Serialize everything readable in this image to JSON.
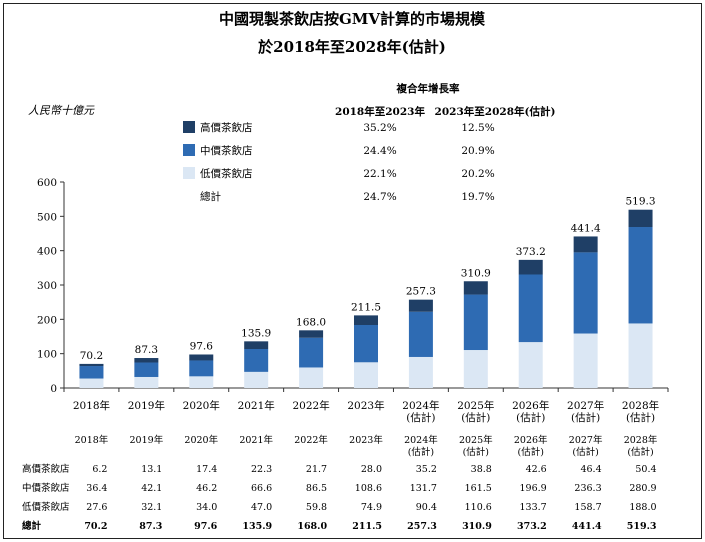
{
  "title_line1": "中國現製茶飲店按GMV計算的市場規模",
  "title_line2": "於2018年至2028年(估計)",
  "unit_label": "人民幣十億元",
  "colors": {
    "high": "#1f3f66",
    "mid": "#2e6bb3",
    "low": "#dbe7f4",
    "axis": "#333333"
  },
  "legend": {
    "cagr_header": "複合年增長率",
    "period_1": "2018年至2023年",
    "period_2": "2023年至2028年(估計)",
    "rows": [
      {
        "key": "high",
        "label": "高價茶飲店",
        "cagr_1": "35.2%",
        "cagr_2": "12.5%"
      },
      {
        "key": "mid",
        "label": "中價茶飲店",
        "cagr_1": "24.4%",
        "cagr_2": "20.9%"
      },
      {
        "key": "low",
        "label": "低價茶飲店",
        "cagr_1": "22.1%",
        "cagr_2": "20.2%"
      },
      {
        "key": "total",
        "label": "總計",
        "cagr_1": "24.7%",
        "cagr_2": "19.7%"
      }
    ]
  },
  "chart_data": {
    "type": "bar",
    "stacked": true,
    "categories": [
      "2018年",
      "2019年",
      "2020年",
      "2021年",
      "2022年",
      "2023年",
      "2024年(估計)",
      "2025年(估計)",
      "2026年(估計)",
      "2027年(估計)",
      "2028年(估計)"
    ],
    "category_lines": [
      [
        "2018年"
      ],
      [
        "2019年"
      ],
      [
        "2020年"
      ],
      [
        "2021年"
      ],
      [
        "2022年"
      ],
      [
        "2023年"
      ],
      [
        "2024年",
        "(估計)"
      ],
      [
        "2025年",
        "(估計)"
      ],
      [
        "2026年",
        "(估計)"
      ],
      [
        "2027年",
        "(估計)"
      ],
      [
        "2028年",
        "(估計)"
      ]
    ],
    "series": [
      {
        "name": "低價茶飲店",
        "key": "low",
        "values": [
          27.6,
          32.1,
          34.0,
          47.0,
          59.8,
          74.9,
          90.4,
          110.6,
          133.7,
          158.7,
          188.0
        ]
      },
      {
        "name": "中價茶飲店",
        "key": "mid",
        "values": [
          36.4,
          42.1,
          46.2,
          66.6,
          86.5,
          108.6,
          131.7,
          161.5,
          196.9,
          236.3,
          280.9
        ]
      },
      {
        "name": "高價茶飲店",
        "key": "high",
        "values": [
          6.2,
          13.1,
          17.4,
          22.3,
          21.7,
          28.0,
          35.2,
          38.8,
          42.6,
          46.4,
          50.4
        ]
      }
    ],
    "totals": [
      70.2,
      87.3,
      97.6,
      135.9,
      168.0,
      211.5,
      257.3,
      310.9,
      373.2,
      441.4,
      519.3
    ],
    "total_labels": [
      "70.2",
      "87.3",
      "97.6",
      "135.9",
      "168.0",
      "211.5",
      "257.3",
      "310.9",
      "373.2",
      "441.4",
      "519.3"
    ],
    "yticks": [
      "0",
      "100",
      "200",
      "300",
      "400",
      "500",
      "600"
    ],
    "ylim": [
      0,
      600
    ],
    "grid": false,
    "legend_position": "top-left"
  },
  "table": {
    "header_lines": [
      [
        "2018年"
      ],
      [
        "2019年"
      ],
      [
        "2020年"
      ],
      [
        "2021年"
      ],
      [
        "2022年"
      ],
      [
        "2023年"
      ],
      [
        "2024年",
        "(估計)"
      ],
      [
        "2025年",
        "(估計)"
      ],
      [
        "2026年",
        "(估計)"
      ],
      [
        "2027年",
        "(估計)"
      ],
      [
        "2028年",
        "(估計)"
      ]
    ],
    "rows": [
      {
        "label": "高價茶飲店",
        "bold": false,
        "values": [
          "6.2",
          "13.1",
          "17.4",
          "22.3",
          "21.7",
          "28.0",
          "35.2",
          "38.8",
          "42.6",
          "46.4",
          "50.4"
        ]
      },
      {
        "label": "中價茶飲店",
        "bold": false,
        "values": [
          "36.4",
          "42.1",
          "46.2",
          "66.6",
          "86.5",
          "108.6",
          "131.7",
          "161.5",
          "196.9",
          "236.3",
          "280.9"
        ]
      },
      {
        "label": "低價茶飲店",
        "bold": false,
        "values": [
          "27.6",
          "32.1",
          "34.0",
          "47.0",
          "59.8",
          "74.9",
          "90.4",
          "110.6",
          "133.7",
          "158.7",
          "188.0"
        ]
      },
      {
        "label": "總計",
        "bold": true,
        "values": [
          "70.2",
          "87.3",
          "97.6",
          "135.9",
          "168.0",
          "211.5",
          "257.3",
          "310.9",
          "373.2",
          "441.4",
          "519.3"
        ]
      }
    ]
  }
}
